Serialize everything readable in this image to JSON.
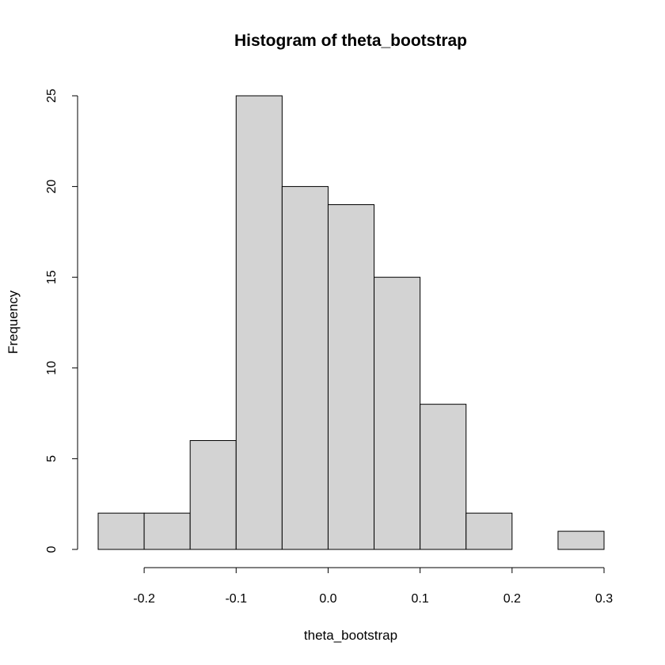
{
  "chart_data": {
    "type": "bar",
    "title": "Histogram of theta_bootstrap",
    "xlabel": "theta_bootstrap",
    "ylabel": "Frequency",
    "bin_edges": [
      -0.25,
      -0.2,
      -0.15,
      -0.1,
      -0.05,
      0.0,
      0.05,
      0.1,
      0.15,
      0.2,
      0.25,
      0.3
    ],
    "values": [
      2,
      2,
      6,
      25,
      20,
      19,
      15,
      8,
      2,
      0,
      1
    ],
    "xlim": [
      -0.25,
      0.3
    ],
    "ylim": [
      0,
      25
    ],
    "x_ticks": [
      -0.2,
      -0.1,
      0.0,
      0.1,
      0.2,
      0.3
    ],
    "x_tick_labels": [
      "-0.2",
      "-0.1",
      "0.0",
      "0.1",
      "0.2",
      "0.3"
    ],
    "y_ticks": [
      0,
      5,
      10,
      15,
      20,
      25
    ],
    "y_tick_labels": [
      "0",
      "5",
      "10",
      "15",
      "20",
      "25"
    ],
    "grid": false,
    "colors": {
      "bar_fill": "#d3d3d3",
      "bar_stroke": "#000000"
    }
  }
}
